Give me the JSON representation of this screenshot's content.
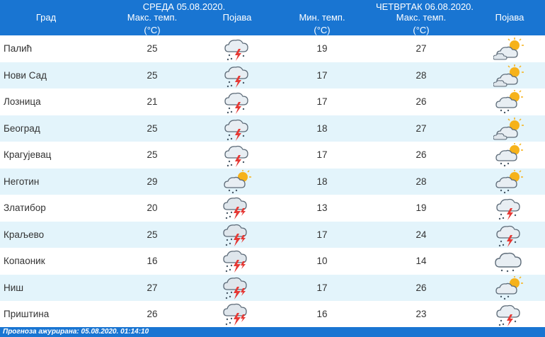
{
  "header": {
    "city_label": "Град",
    "day1_label": "СРЕДА  05.08.2020.",
    "day1_max_label": "Макс. темп.",
    "day1_unit": "(°C)",
    "day1_phenomenon_label": "Појава",
    "day2_label": "ЧЕТВРТАК  06.08.2020.",
    "day2_min_label": "Мин. темп.",
    "day2_min_unit": "(°C)",
    "day2_max_label": "Макс. темп.",
    "day2_max_unit": "(°C)",
    "day2_phenomenon_label": "Појава"
  },
  "rows": [
    {
      "city": "Палић",
      "d1_max": "25",
      "d1_icon": "thunderstorm-icon",
      "d2_min": "19",
      "d2_max": "27",
      "d2_icon": "partly-cloudy-icon"
    },
    {
      "city": "Нови Сад",
      "d1_max": "25",
      "d1_icon": "thunderstorm-icon",
      "d2_min": "17",
      "d2_max": "28",
      "d2_icon": "partly-cloudy-icon"
    },
    {
      "city": "Лозница",
      "d1_max": "21",
      "d1_icon": "thunderstorm-icon",
      "d2_min": "17",
      "d2_max": "26",
      "d2_icon": "sun-cloud-rain-icon"
    },
    {
      "city": "Београд",
      "d1_max": "25",
      "d1_icon": "thunderstorm-icon",
      "d2_min": "18",
      "d2_max": "27",
      "d2_icon": "partly-cloudy-icon"
    },
    {
      "city": "Крагујевац",
      "d1_max": "25",
      "d1_icon": "thunderstorm-icon",
      "d2_min": "17",
      "d2_max": "26",
      "d2_icon": "sun-cloud-rain-icon"
    },
    {
      "city": "Неготин",
      "d1_max": "29",
      "d1_icon": "sun-cloud-rain-icon",
      "d2_min": "18",
      "d2_max": "28",
      "d2_icon": "sun-cloud-rain-icon"
    },
    {
      "city": "Златибор",
      "d1_max": "20",
      "d1_icon": "heavy-thunderstorm-icon",
      "d2_min": "13",
      "d2_max": "19",
      "d2_icon": "thunderstorm-icon"
    },
    {
      "city": "Краљево",
      "d1_max": "25",
      "d1_icon": "heavy-thunderstorm-icon",
      "d2_min": "17",
      "d2_max": "24",
      "d2_icon": "thunderstorm-icon"
    },
    {
      "city": "Копаоник",
      "d1_max": "16",
      "d1_icon": "heavy-thunderstorm-icon",
      "d2_min": "10",
      "d2_max": "14",
      "d2_icon": "cloud-drizzle-icon"
    },
    {
      "city": "Ниш",
      "d1_max": "27",
      "d1_icon": "heavy-thunderstorm-icon",
      "d2_min": "17",
      "d2_max": "26",
      "d2_icon": "sun-cloud-rain-icon"
    },
    {
      "city": "Приштина",
      "d1_max": "26",
      "d1_icon": "heavy-thunderstorm-icon",
      "d2_min": "16",
      "d2_max": "23",
      "d2_icon": "thunderstorm-icon"
    }
  ],
  "footer": {
    "updated": "Прогноза ажурирана:  05.08.2020. 01:14:10"
  }
}
